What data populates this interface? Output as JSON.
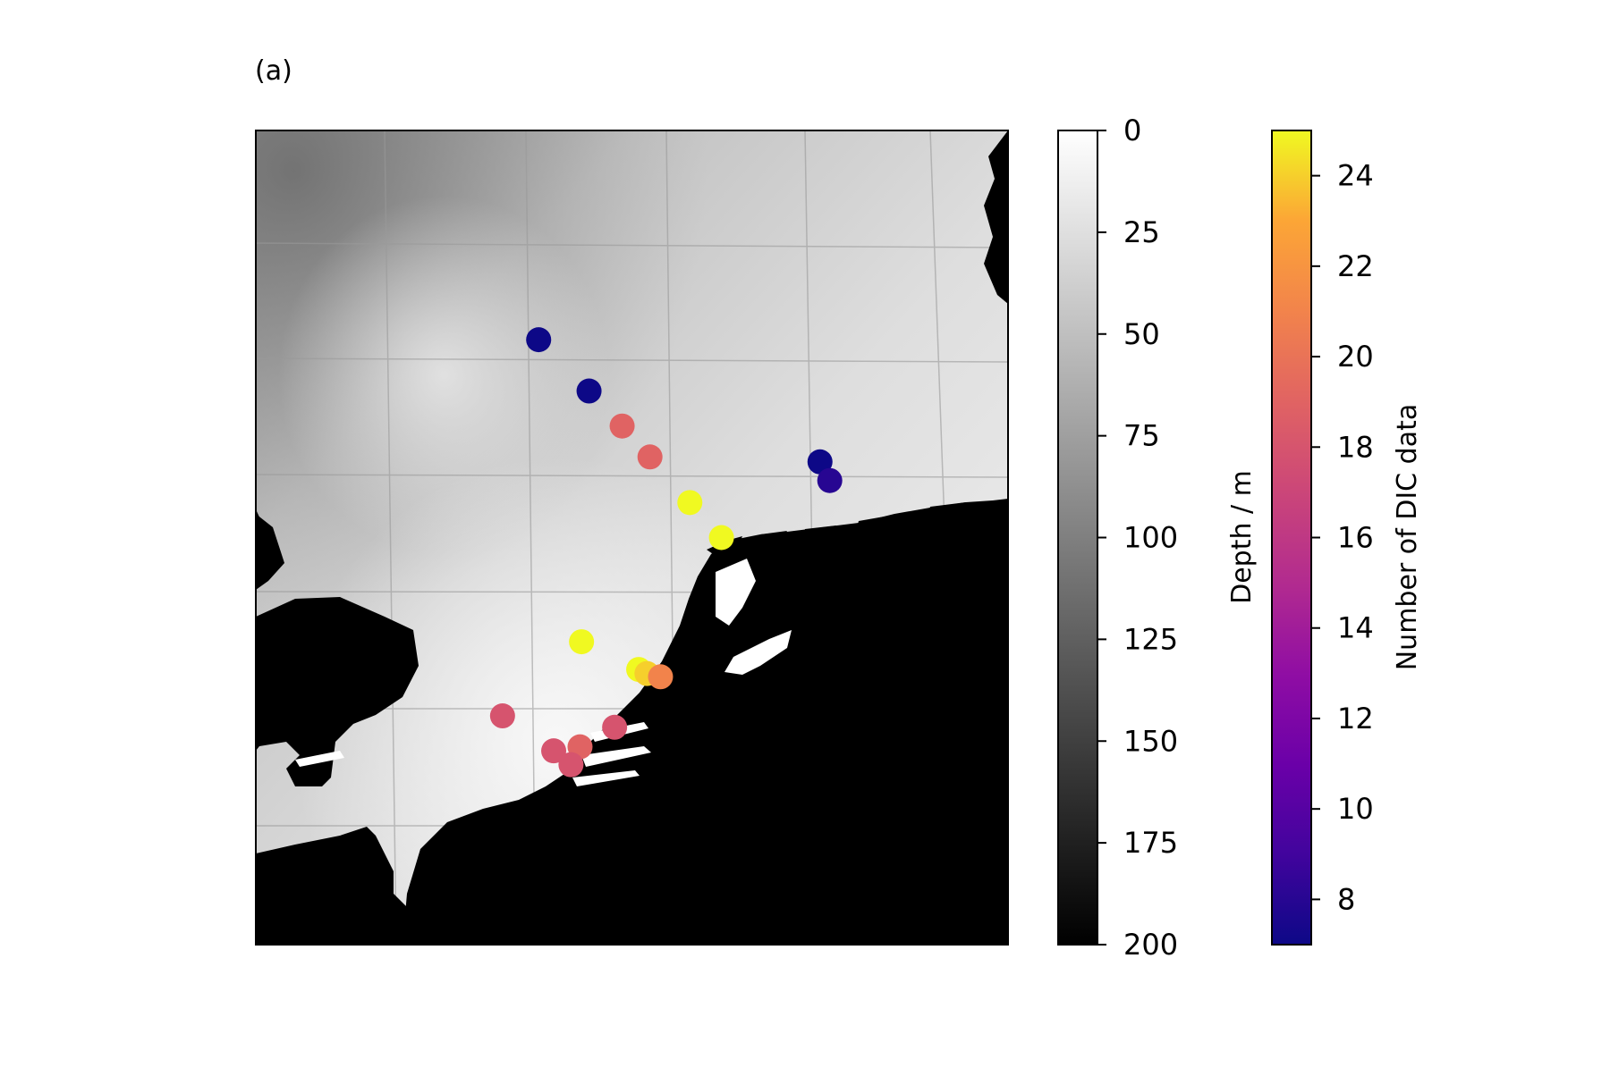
{
  "panel_label": "(a)",
  "map": {
    "description_colorbar_depth": {
      "label": "Depth / m",
      "ticks": [
        "0",
        "25",
        "50",
        "75",
        "100",
        "125",
        "150",
        "175",
        "200"
      ],
      "range": [
        0,
        200
      ],
      "colormap": "gray (white shallow, black deep)"
    },
    "description_colorbar_count": {
      "label": "Number of DIC data",
      "ticks": [
        "8",
        "10",
        "12",
        "14",
        "16",
        "18",
        "20",
        "22",
        "24"
      ],
      "range": [
        7,
        25
      ],
      "colormap": "plasma"
    }
  },
  "chart_data": {
    "type": "scatter",
    "colorbar_label": "Number of DIC data",
    "color_range": [
      7,
      25
    ],
    "stations": [
      {
        "lon_frac": 0.376,
        "lat_frac": 0.257,
        "n": 7
      },
      {
        "lon_frac": 0.443,
        "lat_frac": 0.32,
        "n": 7
      },
      {
        "lon_frac": 0.487,
        "lat_frac": 0.363,
        "n": 19
      },
      {
        "lon_frac": 0.524,
        "lat_frac": 0.401,
        "n": 19
      },
      {
        "lon_frac": 0.577,
        "lat_frac": 0.457,
        "n": 25
      },
      {
        "lon_frac": 0.619,
        "lat_frac": 0.5,
        "n": 25
      },
      {
        "lon_frac": 0.75,
        "lat_frac": 0.407,
        "n": 7
      },
      {
        "lon_frac": 0.763,
        "lat_frac": 0.43,
        "n": 8
      },
      {
        "lon_frac": 0.433,
        "lat_frac": 0.628,
        "n": 25
      },
      {
        "lon_frac": 0.509,
        "lat_frac": 0.662,
        "n": 25
      },
      {
        "lon_frac": 0.52,
        "lat_frac": 0.667,
        "n": 24
      },
      {
        "lon_frac": 0.538,
        "lat_frac": 0.671,
        "n": 21
      },
      {
        "lon_frac": 0.328,
        "lat_frac": 0.719,
        "n": 18
      },
      {
        "lon_frac": 0.477,
        "lat_frac": 0.733,
        "n": 18
      },
      {
        "lon_frac": 0.396,
        "lat_frac": 0.762,
        "n": 18
      },
      {
        "lon_frac": 0.431,
        "lat_frac": 0.757,
        "n": 19
      },
      {
        "lon_frac": 0.419,
        "lat_frac": 0.779,
        "n": 18
      }
    ]
  }
}
